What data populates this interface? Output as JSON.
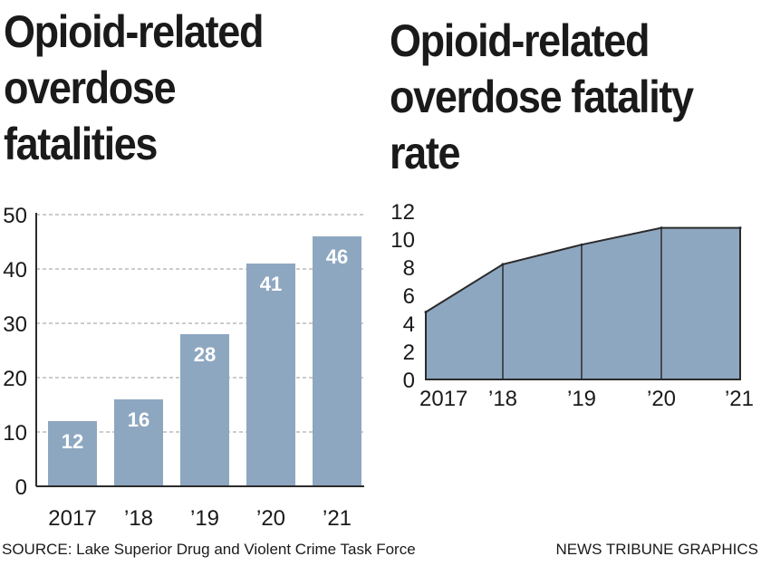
{
  "chart_data": [
    {
      "type": "bar",
      "title": "Opioid-related\noverdose\nfatalities",
      "categories": [
        "2017",
        "’18",
        "’19",
        "’20",
        "’21"
      ],
      "values": [
        12,
        16,
        28,
        41,
        46
      ],
      "data_labels": [
        "12",
        "16",
        "28",
        "41",
        "46"
      ],
      "ylim": [
        0,
        50
      ],
      "yticks": [
        "0",
        "10",
        "20",
        "30",
        "40",
        "50"
      ],
      "grid": true,
      "xlabel": "",
      "ylabel": ""
    },
    {
      "type": "area",
      "title": "Opioid-related\noverdose fatality\nrate",
      "categories": [
        "2017",
        "’18",
        "’19",
        "’20",
        "’21"
      ],
      "values": [
        4.8,
        8.2,
        9.6,
        10.8,
        10.8
      ],
      "ylim": [
        0,
        12
      ],
      "yticks": [
        "0",
        "2",
        "4",
        "6",
        "8",
        "10",
        "12"
      ],
      "grid": false,
      "xlabel": "",
      "ylabel": ""
    }
  ],
  "colors": {
    "bar": "#8ea7c1",
    "area_fill": "#8ea7c1",
    "outline": "#2b2b2b",
    "grid": "#9a9a9a",
    "text": "#1a1a1a"
  },
  "footer": {
    "source": "SOURCE: Lake Superior Drug and Violent Crime Task Force",
    "credit": "NEWS TRIBUNE GRAPHICS"
  }
}
